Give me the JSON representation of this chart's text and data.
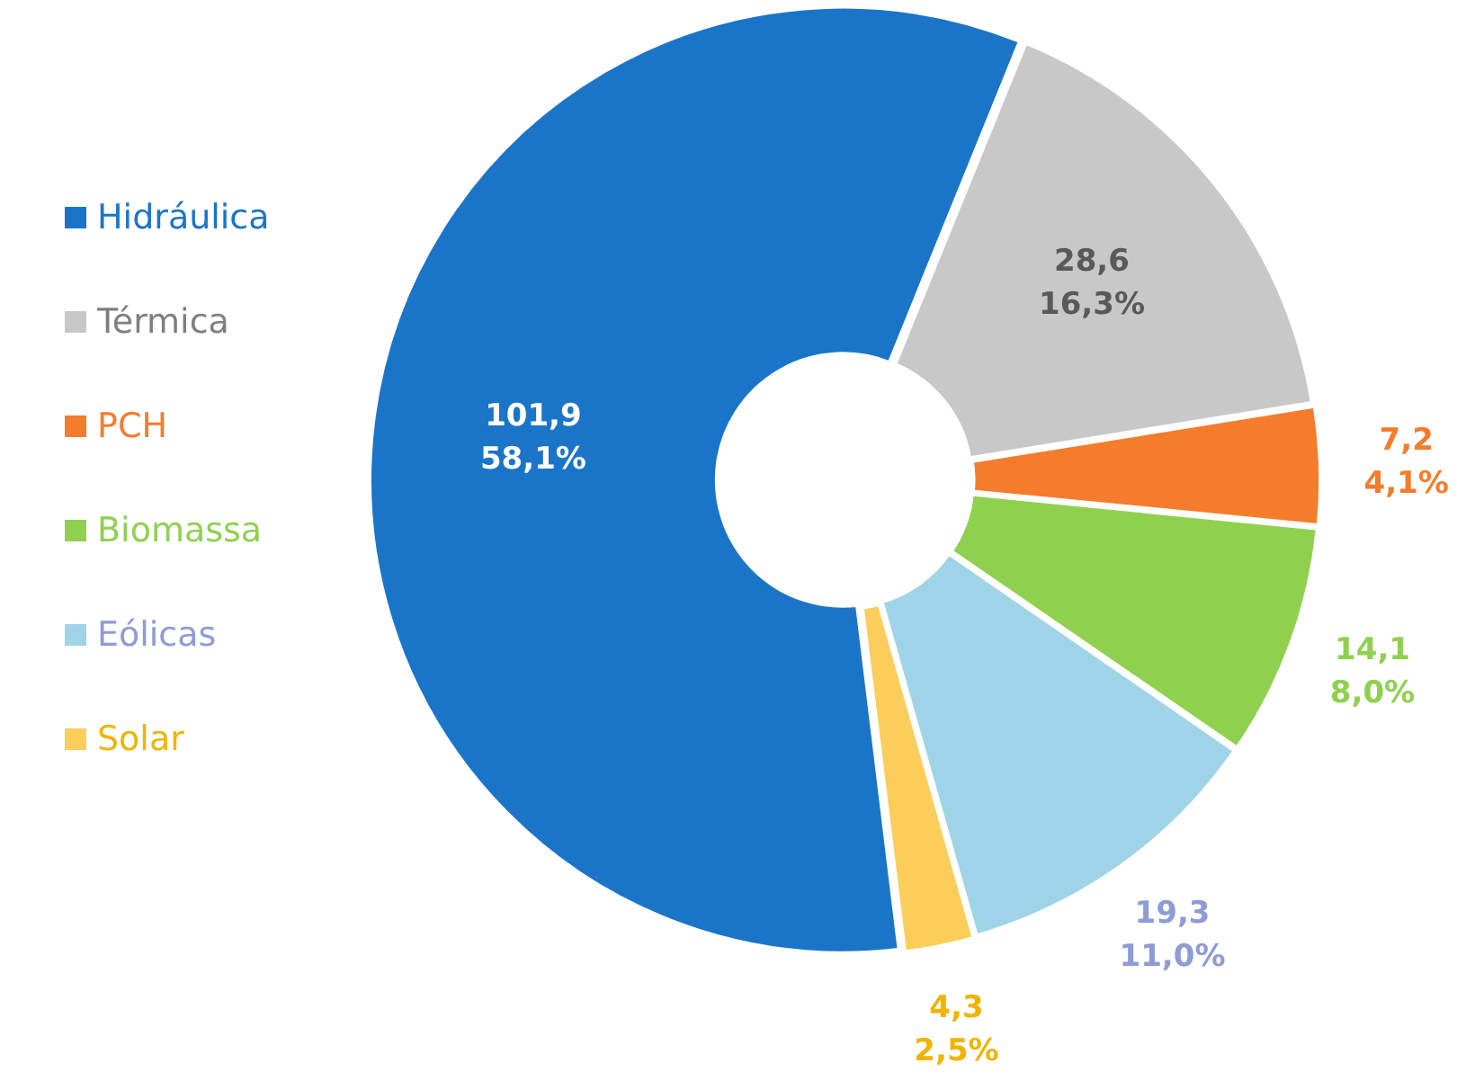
{
  "chart_data": {
    "type": "donut",
    "categories": [
      "Hidráulica",
      "Térmica",
      "PCH",
      "Biomassa",
      "Eólicas",
      "Solar"
    ],
    "values": [
      101.9,
      28.6,
      7.2,
      14.1,
      19.3,
      4.3
    ],
    "colors": [
      "#1a75c8",
      "#c8c8c8",
      "#f47c2c",
      "#8fd14f",
      "#9fd4e8",
      "#fbcd5a"
    ],
    "value_labels": [
      "101,9\n58,1%",
      "28,6\n16,3%",
      "7,2\n4,1%",
      "14,1\n8,0%",
      "19,3\n11,0%",
      "4,3\n2,5%"
    ],
    "legend": "left"
  }
}
